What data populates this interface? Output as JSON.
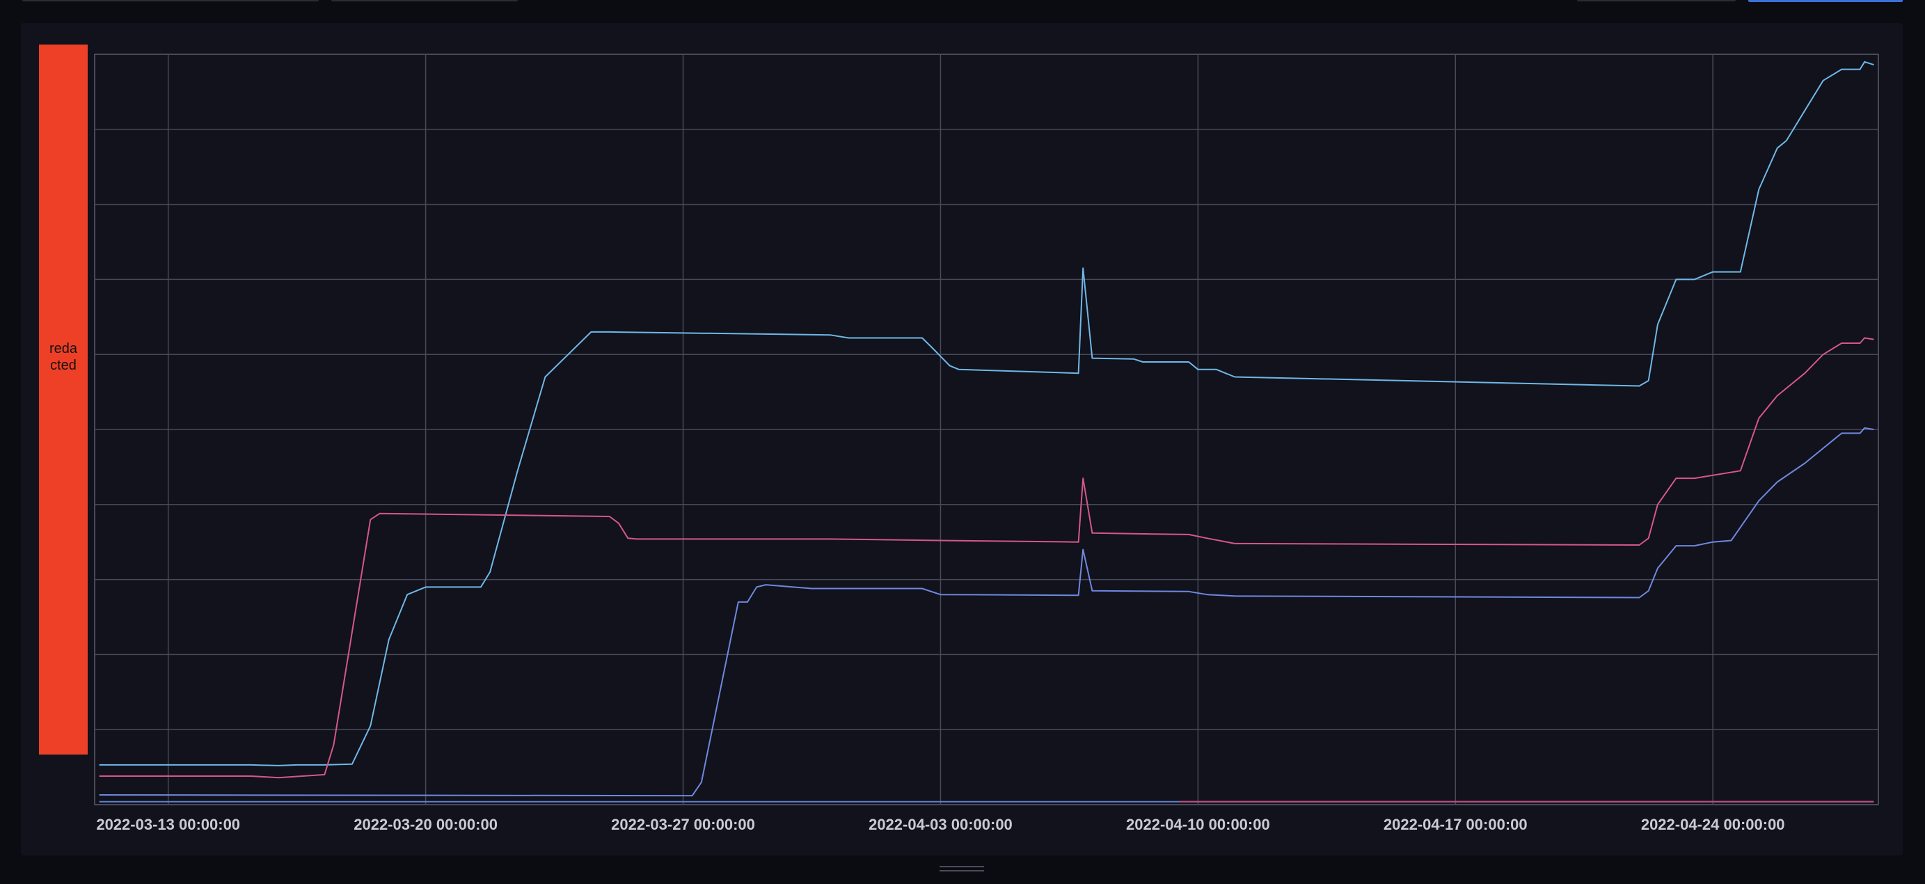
{
  "redacted_label": "reda cted",
  "chart_data": {
    "type": "line",
    "title": "",
    "xlabel": "",
    "ylabel": "",
    "x_ticks": [
      "2022-03-13 00:00:00",
      "2022-03-20 00:00:00",
      "2022-03-27 00:00:00",
      "2022-04-03 00:00:00",
      "2022-04-10 00:00:00",
      "2022-04-17 00:00:00",
      "2022-04-24 00:00:00"
    ],
    "xlim": [
      "2022-03-11 00:00:00",
      "2022-04-28 12:00:00"
    ],
    "y_tick_labels_visible": false,
    "ylim": [
      0,
      100
    ],
    "grid": true,
    "legend": "none",
    "series": [
      {
        "color": "#6fb8e8",
        "points": [
          [
            "2022-03-11 03:00",
            5.3
          ],
          [
            "2022-03-13 12:00",
            5.3
          ],
          [
            "2022-03-15 06:00",
            5.3
          ],
          [
            "2022-03-16 00:00",
            5.2
          ],
          [
            "2022-03-16 12:00",
            5.3
          ],
          [
            "2022-03-17 06:00",
            5.3
          ],
          [
            "2022-03-18 00:00",
            5.4
          ],
          [
            "2022-03-18 12:00",
            10.5
          ],
          [
            "2022-03-19 00:00",
            22.0
          ],
          [
            "2022-03-19 12:00",
            28.0
          ],
          [
            "2022-03-20 00:00",
            29.0
          ],
          [
            "2022-03-21 00:00",
            29.0
          ],
          [
            "2022-03-21 12:00",
            29.0
          ],
          [
            "2022-03-21 18:00",
            31.0
          ],
          [
            "2022-03-22 12:00",
            44.5
          ],
          [
            "2022-03-23 06:00",
            57.0
          ],
          [
            "2022-03-24 12:00",
            63.0
          ],
          [
            "2022-03-25 00:00",
            63.0
          ],
          [
            "2022-03-31 00:00",
            62.6
          ],
          [
            "2022-03-31 12:00",
            62.2
          ],
          [
            "2022-04-02 12:00",
            62.2
          ],
          [
            "2022-04-02 18:00",
            61.0
          ],
          [
            "2022-04-03 06:00",
            58.5
          ],
          [
            "2022-04-03 12:00",
            58.0
          ],
          [
            "2022-04-06 18:00",
            57.5
          ],
          [
            "2022-04-06 21:00",
            71.5
          ],
          [
            "2022-04-07 03:00",
            59.5
          ],
          [
            "2022-04-08 06:00",
            59.4
          ],
          [
            "2022-04-08 12:00",
            59.0
          ],
          [
            "2022-04-09 18:00",
            59.0
          ],
          [
            "2022-04-10 00:00",
            58.0
          ],
          [
            "2022-04-10 12:00",
            58.0
          ],
          [
            "2022-04-10 18:00",
            57.5
          ],
          [
            "2022-04-11 00:00",
            57.0
          ],
          [
            "2022-04-22 00:00",
            55.8
          ],
          [
            "2022-04-22 06:00",
            56.5
          ],
          [
            "2022-04-22 12:00",
            64.0
          ],
          [
            "2022-04-23 00:00",
            70.0
          ],
          [
            "2022-04-23 12:00",
            70.0
          ],
          [
            "2022-04-24 00:00",
            71.0
          ],
          [
            "2022-04-24 18:00",
            71.0
          ],
          [
            "2022-04-25 06:00",
            82.0
          ],
          [
            "2022-04-25 18:00",
            87.5
          ],
          [
            "2022-04-26 00:00",
            88.5
          ],
          [
            "2022-04-26 12:00",
            92.5
          ],
          [
            "2022-04-27 00:00",
            96.5
          ],
          [
            "2022-04-27 12:00",
            98.0
          ],
          [
            "2022-04-28 00:00",
            98.0
          ],
          [
            "2022-04-28 03:00",
            99.0
          ],
          [
            "2022-04-28 09:00",
            98.6
          ]
        ]
      },
      {
        "color": "#d6578a",
        "points": [
          [
            "2022-03-11 03:00",
            3.8
          ],
          [
            "2022-03-13 12:00",
            3.8
          ],
          [
            "2022-03-15 06:00",
            3.8
          ],
          [
            "2022-03-16 00:00",
            3.6
          ],
          [
            "2022-03-17 06:00",
            4.0
          ],
          [
            "2022-03-17 12:00",
            8.0
          ],
          [
            "2022-03-18 12:00",
            38.0
          ],
          [
            "2022-03-18 18:00",
            38.8
          ],
          [
            "2022-03-25 00:00",
            38.4
          ],
          [
            "2022-03-25 06:00",
            37.5
          ],
          [
            "2022-03-25 12:00",
            35.5
          ],
          [
            "2022-03-25 18:00",
            35.4
          ],
          [
            "2022-03-31 00:00",
            35.4
          ],
          [
            "2022-04-03 00:00",
            35.2
          ],
          [
            "2022-04-06 18:00",
            35.0
          ],
          [
            "2022-04-06 21:00",
            43.5
          ],
          [
            "2022-04-07 03:00",
            36.2
          ],
          [
            "2022-04-08 06:00",
            36.1
          ],
          [
            "2022-04-09 18:00",
            36.0
          ],
          [
            "2022-04-10 06:00",
            35.5
          ],
          [
            "2022-04-11 00:00",
            34.8
          ],
          [
            "2022-04-22 00:00",
            34.6
          ],
          [
            "2022-04-22 06:00",
            35.5
          ],
          [
            "2022-04-22 12:00",
            40.0
          ],
          [
            "2022-04-23 00:00",
            43.5
          ],
          [
            "2022-04-23 12:00",
            43.5
          ],
          [
            "2022-04-24 18:00",
            44.5
          ],
          [
            "2022-04-25 06:00",
            51.5
          ],
          [
            "2022-04-25 18:00",
            54.5
          ],
          [
            "2022-04-26 12:00",
            57.5
          ],
          [
            "2022-04-27 00:00",
            60.0
          ],
          [
            "2022-04-27 12:00",
            61.5
          ],
          [
            "2022-04-28 00:00",
            61.5
          ],
          [
            "2022-04-28 03:00",
            62.2
          ],
          [
            "2022-04-28 09:00",
            62.0
          ]
        ]
      },
      {
        "color": "#6f88e0",
        "points": [
          [
            "2022-03-11 03:00",
            1.3
          ],
          [
            "2022-03-27 00:00",
            1.2
          ],
          [
            "2022-03-27 06:00",
            1.2
          ],
          [
            "2022-03-27 12:00",
            3.0
          ],
          [
            "2022-03-28 12:00",
            27.0
          ],
          [
            "2022-03-28 18:00",
            27.0
          ],
          [
            "2022-03-29 00:00",
            29.0
          ],
          [
            "2022-03-29 06:00",
            29.3
          ],
          [
            "2022-03-30 00:00",
            29.0
          ],
          [
            "2022-03-30 12:00",
            28.8
          ],
          [
            "2022-04-02 12:00",
            28.8
          ],
          [
            "2022-04-03 00:00",
            28.0
          ],
          [
            "2022-04-06 18:00",
            27.9
          ],
          [
            "2022-04-06 21:00",
            34.0
          ],
          [
            "2022-04-07 03:00",
            28.5
          ],
          [
            "2022-04-09 18:00",
            28.4
          ],
          [
            "2022-04-10 06:00",
            28.0
          ],
          [
            "2022-04-11 00:00",
            27.8
          ],
          [
            "2022-04-22 00:00",
            27.6
          ],
          [
            "2022-04-22 06:00",
            28.5
          ],
          [
            "2022-04-22 12:00",
            31.5
          ],
          [
            "2022-04-23 00:00",
            34.5
          ],
          [
            "2022-04-23 12:00",
            34.5
          ],
          [
            "2022-04-24 00:00",
            35.0
          ],
          [
            "2022-04-24 12:00",
            35.2
          ],
          [
            "2022-04-25 06:00",
            40.5
          ],
          [
            "2022-04-25 18:00",
            43.0
          ],
          [
            "2022-04-26 12:00",
            45.5
          ],
          [
            "2022-04-27 06:00",
            48.5
          ],
          [
            "2022-04-27 12:00",
            49.5
          ],
          [
            "2022-04-28 00:00",
            49.5
          ],
          [
            "2022-04-28 03:00",
            50.2
          ],
          [
            "2022-04-28 09:00",
            50.0
          ]
        ]
      },
      {
        "color": "#5f7fd0",
        "points": [
          [
            "2022-03-11 03:00",
            0.4
          ],
          [
            "2022-04-28 09:00",
            0.4
          ]
        ]
      },
      {
        "color": "#c04a7e",
        "points": [
          [
            "2022-04-09 12:00",
            0.4
          ],
          [
            "2022-04-28 09:00",
            0.4
          ]
        ]
      }
    ]
  }
}
